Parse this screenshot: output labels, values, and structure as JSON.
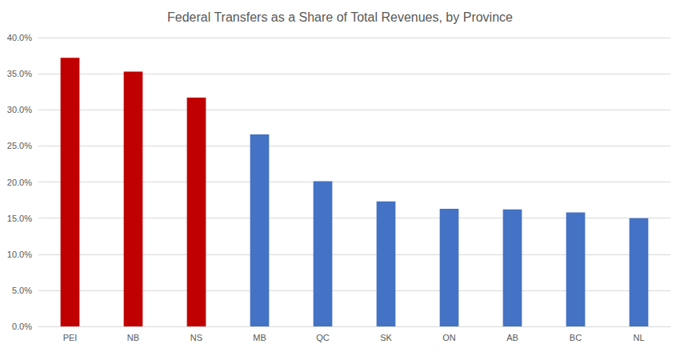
{
  "chart_data": {
    "type": "bar",
    "title": "Federal Transfers as a Share of Total Revenues, by Province",
    "categories": [
      "PEI",
      "NB",
      "NS",
      "MB",
      "QC",
      "SK",
      "ON",
      "AB",
      "BC",
      "NL"
    ],
    "values": [
      37.2,
      35.3,
      31.7,
      26.6,
      20.1,
      17.3,
      16.3,
      16.2,
      15.8,
      15.0
    ],
    "colors": [
      "#c00000",
      "#c00000",
      "#c00000",
      "#4472c4",
      "#4472c4",
      "#4472c4",
      "#4472c4",
      "#4472c4",
      "#4472c4",
      "#4472c4"
    ],
    "ylim": [
      0,
      40
    ],
    "yticks": [
      {
        "value": 0,
        "label": "0.0%"
      },
      {
        "value": 5,
        "label": "5.0%"
      },
      {
        "value": 10,
        "label": "10.0%"
      },
      {
        "value": 15,
        "label": "15.0%"
      },
      {
        "value": 20,
        "label": "20.0%"
      },
      {
        "value": 25,
        "label": "25.0%"
      },
      {
        "value": 30,
        "label": "30.0%"
      },
      {
        "value": 35,
        "label": "35.0%"
      },
      {
        "value": 40,
        "label": "40.0%"
      }
    ],
    "grid": true
  }
}
